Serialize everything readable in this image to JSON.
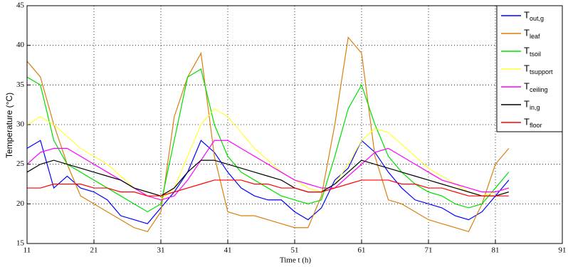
{
  "chart_data": {
    "type": "line",
    "xlabel": "Time t (h)",
    "ylabel": "Temperature (°C)",
    "x": [
      11,
      13,
      15,
      17,
      19,
      21,
      23,
      25,
      27,
      29,
      31,
      33,
      35,
      37,
      39,
      41,
      43,
      45,
      47,
      49,
      51,
      53,
      55,
      57,
      59,
      61,
      63,
      65,
      67,
      69,
      71,
      73,
      75,
      77,
      79,
      81,
      83
    ],
    "xlim": [
      11,
      91
    ],
    "xticks": [
      11,
      21,
      31,
      41,
      51,
      61,
      71,
      81,
      91
    ],
    "ylim": [
      15,
      45
    ],
    "yticks": [
      15,
      20,
      25,
      30,
      35,
      40,
      45
    ],
    "grid": true,
    "legend": "upper right",
    "series": [
      {
        "name": "Tout,g",
        "color": "#0000ff",
        "values": [
          27,
          28,
          22,
          23.5,
          22,
          21.5,
          20.5,
          18.5,
          18,
          17.5,
          19.5,
          21.5,
          24,
          28,
          26.5,
          24,
          22,
          21,
          20.5,
          20.5,
          19,
          18,
          19.5,
          23,
          24.5,
          28,
          26.5,
          24,
          22,
          20.5,
          20,
          19.5,
          18.5,
          18,
          19,
          21,
          23
        ]
      },
      {
        "name": "Tleaf",
        "color": "#d97f0f",
        "values": [
          38,
          36,
          30,
          25,
          21,
          20,
          19,
          18,
          17,
          16.5,
          19,
          31,
          36,
          39,
          26,
          19,
          18.5,
          18.5,
          18,
          17.5,
          17,
          17,
          21,
          30,
          41,
          39,
          26,
          20.5,
          20,
          19,
          18,
          17.5,
          17,
          16.5,
          20,
          25,
          27
        ]
      },
      {
        "name": "Ttsoil",
        "color": "#00e000",
        "values": [
          36,
          35,
          28,
          25,
          24,
          23,
          22,
          21,
          20,
          19,
          20,
          28,
          36,
          37,
          30,
          26,
          24,
          23,
          22,
          21,
          20.5,
          20,
          20.5,
          26,
          32,
          35,
          30,
          26,
          24,
          22.5,
          21.5,
          21,
          20,
          19.5,
          20,
          22,
          24
        ]
      },
      {
        "name": "Ttsupport",
        "color": "#ffff33",
        "values": [
          30,
          31,
          30,
          28.5,
          27,
          26,
          25,
          23.5,
          22,
          21,
          20.5,
          22,
          26,
          30,
          32,
          31,
          29,
          27,
          25.5,
          24,
          23,
          22,
          21.5,
          22.5,
          25,
          28,
          29.5,
          29,
          27.5,
          26,
          24.5,
          23.5,
          22.5,
          21.5,
          21,
          21.5,
          22
        ]
      },
      {
        "name": "Tceiling",
        "color": "#ff00ff",
        "values": [
          25,
          26.5,
          27,
          27,
          26,
          25,
          24,
          23,
          22,
          21,
          20.5,
          21,
          23,
          25.5,
          28,
          28,
          27,
          26,
          25,
          24,
          23,
          22.5,
          22,
          22,
          23.5,
          25,
          26.5,
          27,
          26,
          25,
          24,
          23,
          22.5,
          22,
          21.5,
          21.5,
          22
        ]
      },
      {
        "name": "Tin,g",
        "color": "#000000",
        "values": [
          24,
          25,
          25.5,
          25,
          24.5,
          24,
          23.5,
          23,
          22,
          21.5,
          21,
          22,
          24,
          25.5,
          25.5,
          25,
          24.5,
          24,
          23.5,
          23,
          22,
          21.5,
          21.5,
          22.5,
          24,
          25.5,
          25,
          24.5,
          24,
          23.5,
          23,
          22.5,
          22,
          21.5,
          21,
          21,
          21.5
        ]
      },
      {
        "name": "Tfloor",
        "color": "#ff0000",
        "values": [
          22,
          22,
          22.5,
          22.5,
          22.5,
          22,
          22,
          21.5,
          21.5,
          21,
          21,
          21.5,
          22,
          22.5,
          23,
          23,
          23,
          22.5,
          22.5,
          22,
          22,
          21.5,
          21.5,
          22,
          22.5,
          23,
          23,
          23,
          22.5,
          22.5,
          22,
          22,
          21.5,
          21,
          21,
          21,
          21
        ]
      }
    ]
  }
}
